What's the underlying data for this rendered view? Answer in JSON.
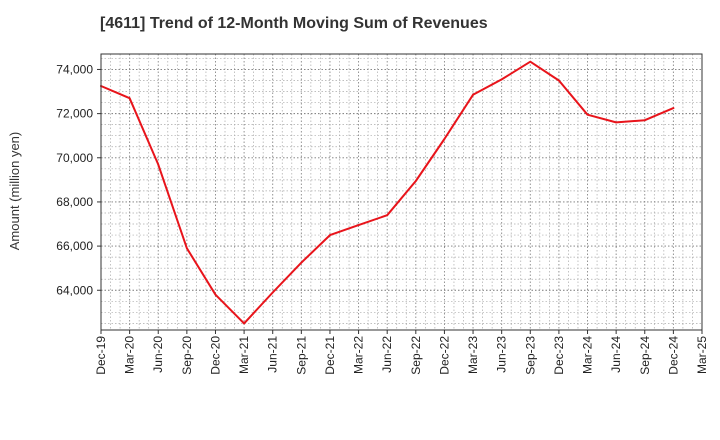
{
  "chart_data": {
    "type": "line",
    "title": "[4611]  Trend of 12-Month Moving Sum of Revenues",
    "xlabel": "",
    "ylabel": "Amount (million yen)",
    "x": [
      "Dec-19",
      "Mar-20",
      "Jun-20",
      "Sep-20",
      "Dec-20",
      "Mar-21",
      "Jun-21",
      "Sep-21",
      "Dec-21",
      "Mar-22",
      "Jun-22",
      "Sep-22",
      "Dec-22",
      "Mar-23",
      "Jun-23",
      "Sep-23",
      "Dec-23",
      "Mar-24",
      "Jun-24",
      "Sep-24",
      "Dec-24",
      "Mar-25"
    ],
    "series": [
      {
        "name": "",
        "color": "#e8141b",
        "values": [
          73250,
          72700,
          69700,
          65900,
          63800,
          62500,
          63900,
          65250,
          66500,
          66950,
          67400,
          68950,
          70850,
          72850,
          73550,
          74350,
          73500,
          71950,
          71600,
          71700,
          72250,
          null
        ]
      }
    ],
    "y_ticks": [
      64000,
      66000,
      68000,
      70000,
      72000,
      74000
    ],
    "y_tick_labels": [
      "64,000",
      "66,000",
      "68,000",
      "70,000",
      "72,000",
      "74,000"
    ],
    "ylim": [
      62200,
      74700
    ],
    "grid": true,
    "grid_style": "dotted",
    "legend": "none"
  }
}
